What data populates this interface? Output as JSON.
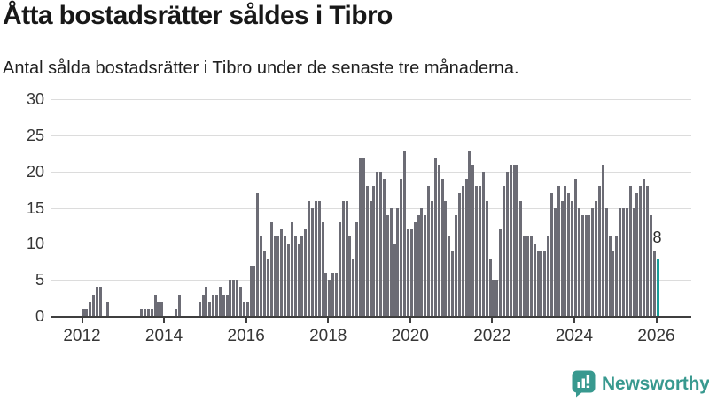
{
  "header": {
    "title": "Åtta bostadsrätter såldes i Tibro",
    "subtitle": "Antal sålda bostadsrätter i Tibro under de senaste tre månaderna."
  },
  "chart_data": {
    "type": "bar",
    "title": "Åtta bostadsrätter såldes i Tibro",
    "subtitle": "Antal sålda bostadsrätter i Tibro under de senaste tre månaderna.",
    "frequency": "monthly",
    "x_start": "2012-01",
    "x_end": "2026-01",
    "ylim": [
      0,
      30
    ],
    "y_ticks": [
      0,
      5,
      10,
      15,
      20,
      25,
      30
    ],
    "x_tick_years": [
      "2012",
      "2014",
      "2016",
      "2018",
      "2020",
      "2022",
      "2024",
      "2026"
    ],
    "grid": true,
    "legend": "none",
    "values": [
      1,
      1,
      2,
      3,
      4,
      4,
      0,
      2,
      0,
      0,
      0,
      0,
      0,
      0,
      0,
      0,
      0,
      1,
      1,
      1,
      1,
      3,
      2,
      2,
      0,
      0,
      0,
      1,
      3,
      0,
      0,
      0,
      0,
      0,
      2,
      3,
      4,
      2,
      3,
      3,
      4,
      3,
      3,
      5,
      5,
      5,
      4,
      2,
      2,
      7,
      7,
      17,
      11,
      9,
      8,
      13,
      11,
      11,
      12,
      11,
      10,
      13,
      11,
      10,
      11,
      12,
      16,
      15,
      16,
      16,
      13,
      6,
      5,
      6,
      6,
      13,
      16,
      16,
      11,
      8,
      13,
      22,
      22,
      18,
      16,
      18,
      20,
      20,
      19,
      14,
      15,
      10,
      15,
      19,
      23,
      12,
      12,
      13,
      14,
      15,
      14,
      18,
      16,
      22,
      21,
      19,
      16,
      11,
      9,
      14,
      17,
      18,
      19,
      23,
      21,
      18,
      18,
      20,
      16,
      8,
      5,
      5,
      12,
      18,
      20,
      21,
      21,
      21,
      16,
      11,
      11,
      11,
      10,
      9,
      9,
      9,
      11,
      17,
      15,
      18,
      16,
      18,
      17,
      16,
      19,
      15,
      14,
      14,
      14,
      15,
      16,
      18,
      21,
      15,
      11,
      9,
      11,
      15,
      15,
      15,
      18,
      15,
      17,
      18,
      19,
      18,
      14,
      9,
      8
    ],
    "highlight": {
      "index": 168,
      "value": 8,
      "label": "8"
    },
    "colors": {
      "bar": "#6c6c75",
      "highlight": "#189e99"
    }
  },
  "branding": {
    "logo_text": "Newsworthy",
    "logo_color": "#38998f",
    "logo_icon": "newsworthy-speech-bubble-bar-chart-icon"
  }
}
